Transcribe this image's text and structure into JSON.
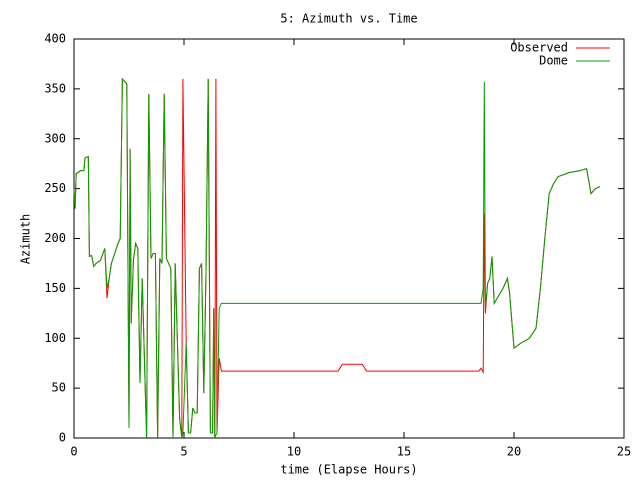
{
  "chart_data": {
    "type": "line",
    "title": "5: Azimuth vs. Time",
    "x_label": "time (Elapse Hours)",
    "y_label": "Azimuth",
    "x": [
      0,
      0.05,
      0.1,
      0.3,
      0.45,
      0.5,
      0.65,
      0.7,
      0.8,
      0.9,
      1.0,
      1.2,
      1.4,
      1.5,
      1.6,
      1.7,
      2.0,
      2.1,
      2.2,
      2.4,
      2.5,
      2.55,
      2.6,
      2.7,
      2.8,
      2.9,
      3.0,
      3.1,
      3.3,
      3.4,
      3.5,
      3.6,
      3.7,
      3.8,
      3.9,
      4.0,
      4.1,
      4.2,
      4.4,
      4.5,
      4.6,
      4.8,
      4.9,
      4.95,
      5.1,
      5.2,
      5.3,
      5.4,
      5.5,
      5.6,
      5.7,
      5.8,
      5.9,
      6.0,
      6.1,
      6.2,
      6.3,
      6.35,
      6.4,
      6.45,
      6.5,
      6.6,
      6.7,
      12.0,
      12.2,
      13.1,
      13.3,
      18.4,
      18.5,
      18.6,
      18.65,
      18.7,
      18.8,
      18.9,
      19.0,
      19.1,
      19.5,
      19.7,
      19.8,
      20.0,
      20.3,
      20.7,
      21.0,
      21.2,
      21.4,
      21.6,
      21.8,
      22.0,
      22.5,
      23.0,
      23.3,
      23.5,
      23.7,
      23.9
    ],
    "series": [
      {
        "name": "Observed",
        "color": "#ff0000",
        "values": [
          250,
          230,
          265,
          268,
          268,
          281,
          282,
          182,
          183,
          172,
          175,
          178,
          190,
          140,
          160,
          175,
          195,
          200,
          360,
          355,
          10,
          290,
          115,
          178,
          195,
          190,
          55,
          160,
          0,
          345,
          180,
          185,
          185,
          0,
          180,
          175,
          345,
          180,
          170,
          0,
          175,
          20,
          0,
          360,
          95,
          5,
          5,
          30,
          25,
          25,
          170,
          175,
          45,
          165,
          360,
          5,
          5,
          130,
          0,
          360,
          5,
          80,
          67,
          67,
          74,
          74,
          67,
          67,
          70,
          66,
          225,
          125,
          155,
          160,
          182,
          135,
          150,
          160,
          145,
          90,
          95,
          100,
          110,
          150,
          200,
          245,
          255,
          262,
          266,
          268,
          270,
          245,
          250,
          252
        ]
      },
      {
        "name": "Dome",
        "color": "#00a000",
        "values": [
          250,
          230,
          265,
          268,
          268,
          281,
          282,
          182,
          183,
          172,
          175,
          178,
          190,
          150,
          160,
          175,
          195,
          200,
          360,
          355,
          10,
          290,
          115,
          178,
          195,
          190,
          55,
          160,
          0,
          345,
          180,
          185,
          185,
          0,
          180,
          175,
          345,
          180,
          170,
          0,
          175,
          20,
          0,
          5,
          95,
          5,
          5,
          30,
          25,
          25,
          170,
          175,
          45,
          165,
          360,
          5,
          5,
          130,
          0,
          3,
          5,
          130,
          135,
          135,
          135,
          135,
          135,
          135,
          135,
          150,
          357,
          130,
          155,
          160,
          182,
          135,
          150,
          160,
          145,
          90,
          95,
          100,
          110,
          150,
          200,
          245,
          255,
          262,
          266,
          268,
          270,
          245,
          250,
          252
        ]
      }
    ],
    "xlim": [
      0,
      25
    ],
    "xticks": [
      0,
      5,
      10,
      15,
      20,
      25
    ],
    "ylim": [
      0,
      400
    ],
    "yticks": [
      0,
      50,
      100,
      150,
      200,
      250,
      300,
      350,
      400
    ],
    "legend": "upper right"
  }
}
